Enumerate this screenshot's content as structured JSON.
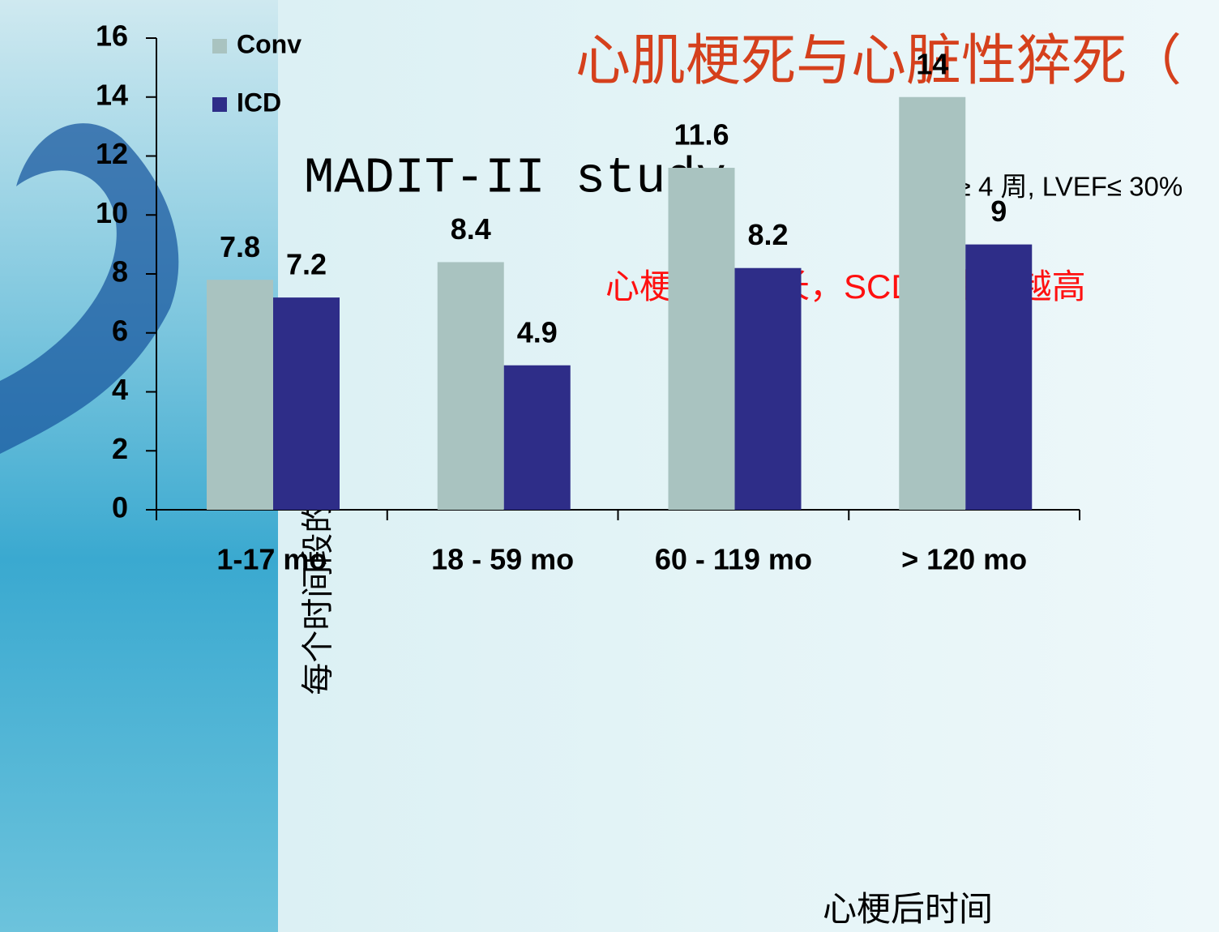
{
  "chart_data": {
    "type": "bar",
    "title": "心肌梗死与心脏性猝死（",
    "subtitle": "MADIT-II study",
    "annotations": [
      "MI≥ 4 周, LVEF≤ 30%",
      "心梗时间越长，SCD发生率越高"
    ],
    "y_label": "每个时间段的死亡%",
    "x_label": "心梗后时间",
    "categories": [
      "1-17 mo",
      "18 - 59 mo",
      "60 - 119 mo",
      "> 120 mo"
    ],
    "series": [
      {
        "name": "Conv",
        "color": "#a9c3c0",
        "values": [
          7.8,
          8.4,
          11.6,
          14
        ]
      },
      {
        "name": "ICD",
        "color": "#2e2d88",
        "values": [
          7.2,
          4.9,
          8.2,
          9
        ]
      }
    ],
    "ylim": [
      0,
      16
    ],
    "yticks": [
      0,
      2,
      4,
      6,
      8,
      10,
      12,
      14,
      16
    ],
    "grid": false
  }
}
